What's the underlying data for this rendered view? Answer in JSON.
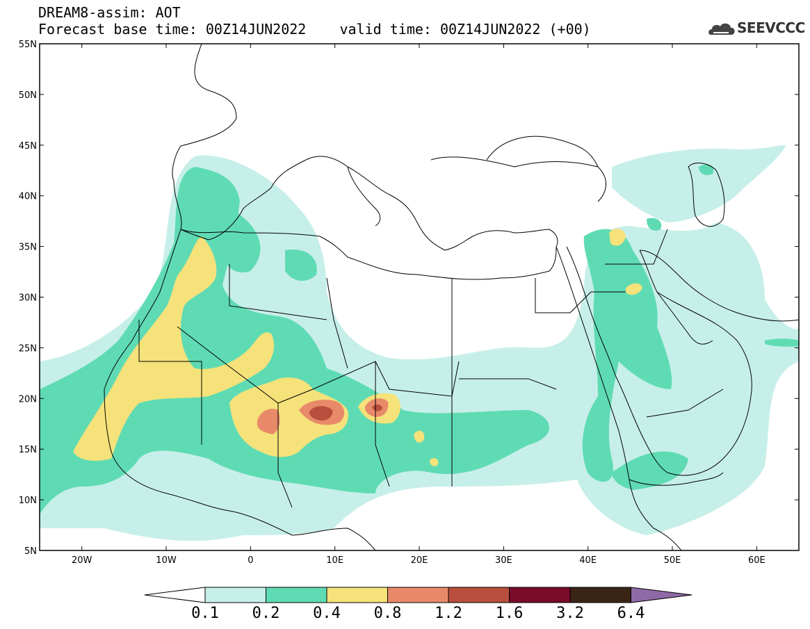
{
  "header": {
    "title": "DREAM8-assim: AOT",
    "base_time_label": "Forecast base time: 00Z14JUN2022",
    "valid_time_label": "valid time: 00Z14JUN2022 (+00)",
    "logo_text": "SEEVCCC"
  },
  "map": {
    "lat_labels": [
      "55N",
      "50N",
      "45N",
      "40N",
      "35N",
      "30N",
      "25N",
      "20N",
      "15N",
      "10N",
      "5N"
    ],
    "lon_labels": [
      "20W",
      "10W",
      "0",
      "10E",
      "20E",
      "30E",
      "40E",
      "50E",
      "60E"
    ],
    "extent": {
      "lon_min": -25,
      "lon_max": 65,
      "lat_min": 5,
      "lat_max": 55
    }
  },
  "colorbar": {
    "levels": [
      "0.1",
      "0.2",
      "0.4",
      "0.8",
      "1.2",
      "1.6",
      "3.2",
      "6.4"
    ],
    "colors": [
      "#ffffff",
      "#c7efe9",
      "#5fdbb4",
      "#f5e27a",
      "#e88a6a",
      "#b84f3c",
      "#7a0a2a",
      "#3a2415",
      "#8e6aa6"
    ]
  },
  "colors": {
    "c1": "#c7efe9",
    "c2": "#5fdbb4",
    "c3": "#f5e27a",
    "c4": "#e88a6a",
    "c5": "#b84f3c"
  }
}
